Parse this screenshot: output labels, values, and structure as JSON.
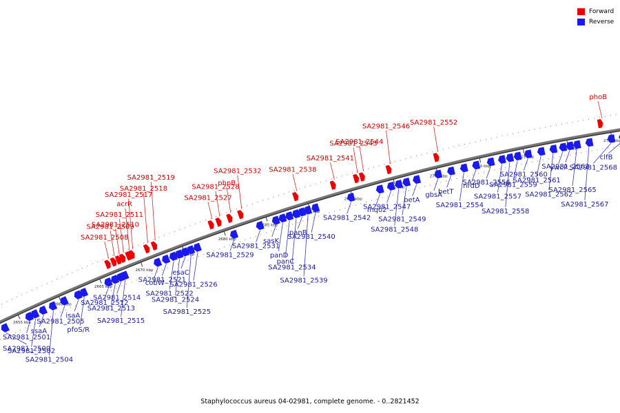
{
  "legend": {
    "forward": "Forward",
    "reverse": "Reverse"
  },
  "colors": {
    "forward": "#ee0000",
    "reverse": "#1a1aee",
    "forward_leader": "#dd2222",
    "reverse_leader": "#3333cc",
    "backbone": "#777777"
  },
  "footer": {
    "caption": "Staphylococcus aureus 04-02981, complete genome. - 0..2821452"
  },
  "genome_range_kbp": [
    2652,
    2727
  ],
  "ticks": [
    {
      "label": "2655 kbp",
      "pos": 2655
    },
    {
      "label": "2660 kbp",
      "pos": 2660
    },
    {
      "label": "2665 kbp",
      "pos": 2665
    },
    {
      "label": "2670 kbp",
      "pos": 2670
    },
    {
      "label": "2675 kbp",
      "pos": 2675
    },
    {
      "label": "2680 kbp",
      "pos": 2680
    },
    {
      "label": "2685 kbp",
      "pos": 2685
    },
    {
      "label": "2690 kbp",
      "pos": 2690
    },
    {
      "label": "2695 kbp",
      "pos": 2695
    },
    {
      "label": "2700 kbp",
      "pos": 2700
    },
    {
      "label": "2705 kbp",
      "pos": 2705
    },
    {
      "label": "2710 kbp",
      "pos": 2710
    },
    {
      "label": "2715 kbp",
      "pos": 2715
    },
    {
      "label": "2720 kbp",
      "pos": 2720
    },
    {
      "label": "2725 kbp",
      "pos": 2725
    }
  ],
  "forward_genes": [
    {
      "label": "SA2981_2508",
      "pos": 2666.8
    },
    {
      "label": "SA2981_2509",
      "pos": 2667.5
    },
    {
      "label": "SA2981_2510",
      "pos": 2668.1
    },
    {
      "label": "SA2981_2511",
      "pos": 2668.6
    },
    {
      "label": "acrR",
      "pos": 2669.3
    },
    {
      "label": "SA2981_2517",
      "pos": 2669.7
    },
    {
      "label": "SA2981_2518",
      "pos": 2671.5
    },
    {
      "label": "SA2981_2519",
      "pos": 2672.4
    },
    {
      "label": "SA2981_2527",
      "pos": 2679.2
    },
    {
      "label": "SA2981_2528",
      "pos": 2680.1
    },
    {
      "label": "phnB",
      "pos": 2681.4
    },
    {
      "label": "SA2981_2532",
      "pos": 2682.7
    },
    {
      "label": "SA2981_2538",
      "pos": 2689.2
    },
    {
      "label": "SA2981_2541",
      "pos": 2693.6
    },
    {
      "label": "SA2981_2543",
      "pos": 2696.3
    },
    {
      "label": "SA2981_2544",
      "pos": 2697.0
    },
    {
      "label": "SA2981_2546",
      "pos": 2700.1
    },
    {
      "label": "SA2981_2552",
      "pos": 2705.6
    },
    {
      "label": "phoB",
      "pos": 2724.3
    }
  ],
  "reverse_genes": [
    {
      "label": "SA2981_2500",
      "pos": 2652.9
    },
    {
      "label": "SA2981_2501",
      "pos": 2655.9
    },
    {
      "label": "SA2981_2502",
      "pos": 2656.6
    },
    {
      "label": "ssaA",
      "pos": 2657.6
    },
    {
      "label": "SA2981_2504",
      "pos": 2658.8
    },
    {
      "label": "SA2981_2505",
      "pos": 2660.2
    },
    {
      "label": "isaA",
      "pos": 2661.9
    },
    {
      "label": "pfoS/R",
      "pos": 2662.6
    },
    {
      "label": "SA2981_2512",
      "pos": 2665.6
    },
    {
      "label": "SA2981_2513",
      "pos": 2666.4
    },
    {
      "label": "SA2981_2514",
      "pos": 2667.1
    },
    {
      "label": "SA2981_2515",
      "pos": 2667.6
    },
    {
      "label": "cobW",
      "pos": 2671.6
    },
    {
      "label": "SA2981_2521",
      "pos": 2672.6
    },
    {
      "label": "SA2981_2522",
      "pos": 2673.5
    },
    {
      "label": "SA2981_2524",
      "pos": 2674.2
    },
    {
      "label": "esaC",
      "pos": 2674.9
    },
    {
      "label": "SA2981_2525",
      "pos": 2675.6
    },
    {
      "label": "SA2981_2526",
      "pos": 2676.4
    },
    {
      "label": "SA2981_2529",
      "pos": 2680.8
    },
    {
      "label": "SA2981_2531",
      "pos": 2683.9
    },
    {
      "label": "sasK",
      "pos": 2685.8
    },
    {
      "label": "panD",
      "pos": 2686.6
    },
    {
      "label": "panC",
      "pos": 2687.4
    },
    {
      "label": "SA2981_2534",
      "pos": 2688.2
    },
    {
      "label": "panB",
      "pos": 2688.9
    },
    {
      "label": "SA2981_2539",
      "pos": 2689.6
    },
    {
      "label": "SA2981_2540",
      "pos": 2690.5
    },
    {
      "label": "SA2981_2542",
      "pos": 2694.7
    },
    {
      "label": "mqo2",
      "pos": 2698.1
    },
    {
      "label": "SA2981_2547",
      "pos": 2699.4
    },
    {
      "label": "SA2981_2548",
      "pos": 2700.3
    },
    {
      "label": "SA2981_2549",
      "pos": 2701.2
    },
    {
      "label": "betA",
      "pos": 2702.4
    },
    {
      "label": "gbsA",
      "pos": 2704.9
    },
    {
      "label": "betT",
      "pos": 2706.4
    },
    {
      "label": "SA2981_2554",
      "pos": 2707.9
    },
    {
      "label": "nrdD",
      "pos": 2709.3
    },
    {
      "label": "SA2981_2556",
      "pos": 2711.0
    },
    {
      "label": "SA2981_2557",
      "pos": 2712.3
    },
    {
      "label": "SA2981_2558",
      "pos": 2713.2
    },
    {
      "label": "SA2981_2559",
      "pos": 2714.1
    },
    {
      "label": "SA2981_2560",
      "pos": 2715.3
    },
    {
      "label": "SA2981_2561",
      "pos": 2716.8
    },
    {
      "label": "SA2981_2562",
      "pos": 2718.2
    },
    {
      "label": "ywcP",
      "pos": 2719.3
    },
    {
      "label": "SA2981_2563",
      "pos": 2720.1
    },
    {
      "label": "SA2981_2565",
      "pos": 2720.9
    },
    {
      "label": "SA2981_2567",
      "pos": 2722.3
    },
    {
      "label": "SA2981_2568",
      "pos": 2724.8
    },
    {
      "label": "clfB",
      "pos": 2726.1
    }
  ]
}
